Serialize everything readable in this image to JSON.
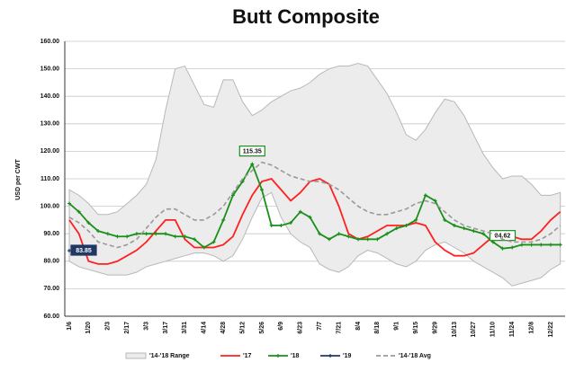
{
  "chart_data": {
    "type": "line",
    "title": "Butt Composite",
    "y_label": "USD per CWT",
    "categories": [
      "1/6",
      null,
      "1/20",
      null,
      "2/3",
      null,
      "2/17",
      null,
      "3/3",
      null,
      "3/17",
      null,
      "3/31",
      null,
      "4/14",
      null,
      "4/28",
      null,
      "5/12",
      null,
      "5/26",
      null,
      "6/9",
      null,
      "6/23",
      null,
      "7/7",
      null,
      "7/21",
      null,
      "8/4",
      null,
      "8/18",
      null,
      "9/1",
      null,
      "9/15",
      null,
      "9/29",
      null,
      "10/13",
      null,
      "10/27",
      null,
      "11/10",
      null,
      "11/24",
      null,
      "12/8",
      null,
      "12/22",
      null
    ],
    "ylim": [
      60,
      160
    ],
    "yticks": [
      {
        "value": 60,
        "label": "60.00"
      },
      {
        "value": 70,
        "label": "70.00"
      },
      {
        "value": 80,
        "label": "80.00"
      },
      {
        "value": 90,
        "label": "90.00"
      },
      {
        "value": 100,
        "label": "100.00"
      },
      {
        "value": 110,
        "label": "110.00"
      },
      {
        "value": 120,
        "label": "120.00"
      },
      {
        "value": 130,
        "label": "130.00"
      },
      {
        "value": 140,
        "label": "140.00"
      },
      {
        "value": 150,
        "label": "150.00"
      },
      {
        "value": 160,
        "label": "160.00"
      }
    ],
    "grid": true,
    "range": {
      "name": "'14-'18 Range",
      "color": "#ececec",
      "high": [
        106,
        104,
        101,
        97,
        97,
        98,
        101,
        104,
        108,
        117,
        135,
        150,
        151,
        144,
        137,
        136,
        146,
        146,
        138,
        133,
        135,
        138,
        140,
        142,
        143,
        145,
        148,
        150,
        151,
        151,
        152,
        151,
        146,
        141,
        134,
        126,
        124,
        128,
        134,
        139,
        138,
        133,
        126,
        119,
        114,
        110,
        111,
        111,
        108,
        104,
        104,
        105
      ],
      "low": [
        80,
        78,
        77,
        76,
        75,
        75,
        75,
        76,
        78,
        79,
        80,
        81,
        82,
        83,
        83,
        82,
        80,
        82,
        88,
        96,
        103,
        105,
        96,
        90,
        87,
        85,
        79,
        77,
        76,
        78,
        82,
        84,
        83,
        81,
        79,
        78,
        80,
        84,
        86,
        87,
        85,
        83,
        80,
        78,
        76,
        74,
        71,
        72,
        73,
        74,
        77,
        79
      ]
    },
    "series": [
      {
        "name": "'17",
        "color": "#ff2020",
        "values": [
          95,
          90,
          80,
          79,
          79,
          80,
          82,
          84,
          87,
          91,
          95,
          95,
          88,
          85,
          85,
          85,
          86,
          89,
          97,
          104,
          109,
          110,
          106,
          102,
          105,
          109,
          110,
          108,
          100,
          90,
          88,
          89,
          91,
          93,
          93,
          93,
          94,
          93,
          87,
          84,
          82,
          82,
          83,
          86,
          89,
          90,
          89,
          88,
          88,
          91,
          95,
          98
        ]
      },
      {
        "name": "'18",
        "color": "#1a8f1a",
        "marker": true,
        "values": [
          101,
          98,
          94,
          91,
          90,
          89,
          89,
          90,
          90,
          90,
          90,
          89,
          89,
          88,
          85,
          87,
          95,
          104,
          109,
          115.35,
          106,
          93,
          93,
          94,
          98,
          96,
          90,
          88,
          90,
          89,
          88,
          88,
          88,
          90,
          92,
          93,
          95,
          104,
          102,
          95,
          93,
          92,
          91,
          90,
          87,
          84.62,
          85,
          86,
          86,
          86,
          86,
          86
        ],
        "value_labels": [
          null,
          null,
          null,
          null,
          null,
          null,
          null,
          null,
          null,
          null,
          null,
          null,
          null,
          null,
          null,
          null,
          null,
          null,
          null,
          "115.35",
          null,
          null,
          null,
          null,
          null,
          null,
          null,
          null,
          null,
          null,
          null,
          null,
          null,
          null,
          null,
          null,
          null,
          null,
          null,
          null,
          null,
          null,
          null,
          null,
          null,
          "84.62",
          null,
          null,
          null,
          null,
          null,
          null
        ]
      },
      {
        "name": "'19",
        "color": "#1f3864",
        "marker": true,
        "values": [
          83.85,
          null,
          null,
          null,
          null,
          null,
          null,
          null,
          null,
          null,
          null,
          null,
          null,
          null,
          null,
          null,
          null,
          null,
          null,
          null,
          null,
          null,
          null,
          null,
          null,
          null,
          null,
          null,
          null,
          null,
          null,
          null,
          null,
          null,
          null,
          null,
          null,
          null,
          null,
          null,
          null,
          null,
          null,
          null,
          null,
          null,
          null,
          null,
          null,
          null,
          null,
          null
        ],
        "value_labels": [
          "83.85",
          null,
          null,
          null,
          null,
          null,
          null,
          null,
          null,
          null,
          null,
          null,
          null,
          null,
          null,
          null,
          null,
          null,
          null,
          null,
          null,
          null,
          null,
          null,
          null,
          null,
          null,
          null,
          null,
          null,
          null,
          null,
          null,
          null,
          null,
          null,
          null,
          null,
          null,
          null,
          null,
          null,
          null,
          null,
          null,
          null,
          null,
          null,
          null,
          null,
          null,
          null
        ]
      },
      {
        "name": "'14-'18 Avg",
        "color": "#999999",
        "dashed": true,
        "values": [
          96,
          94,
          91,
          87,
          86,
          85,
          86,
          88,
          92,
          96,
          99,
          99,
          97,
          95,
          95,
          97,
          100,
          105,
          110,
          113,
          116,
          115,
          113,
          111,
          110,
          109,
          109,
          108,
          106,
          103,
          100,
          98,
          97,
          97,
          98,
          99,
          101,
          102,
          101,
          98,
          95,
          93,
          92,
          91,
          90,
          88,
          87,
          87,
          87,
          88,
          90,
          93
        ]
      }
    ]
  }
}
